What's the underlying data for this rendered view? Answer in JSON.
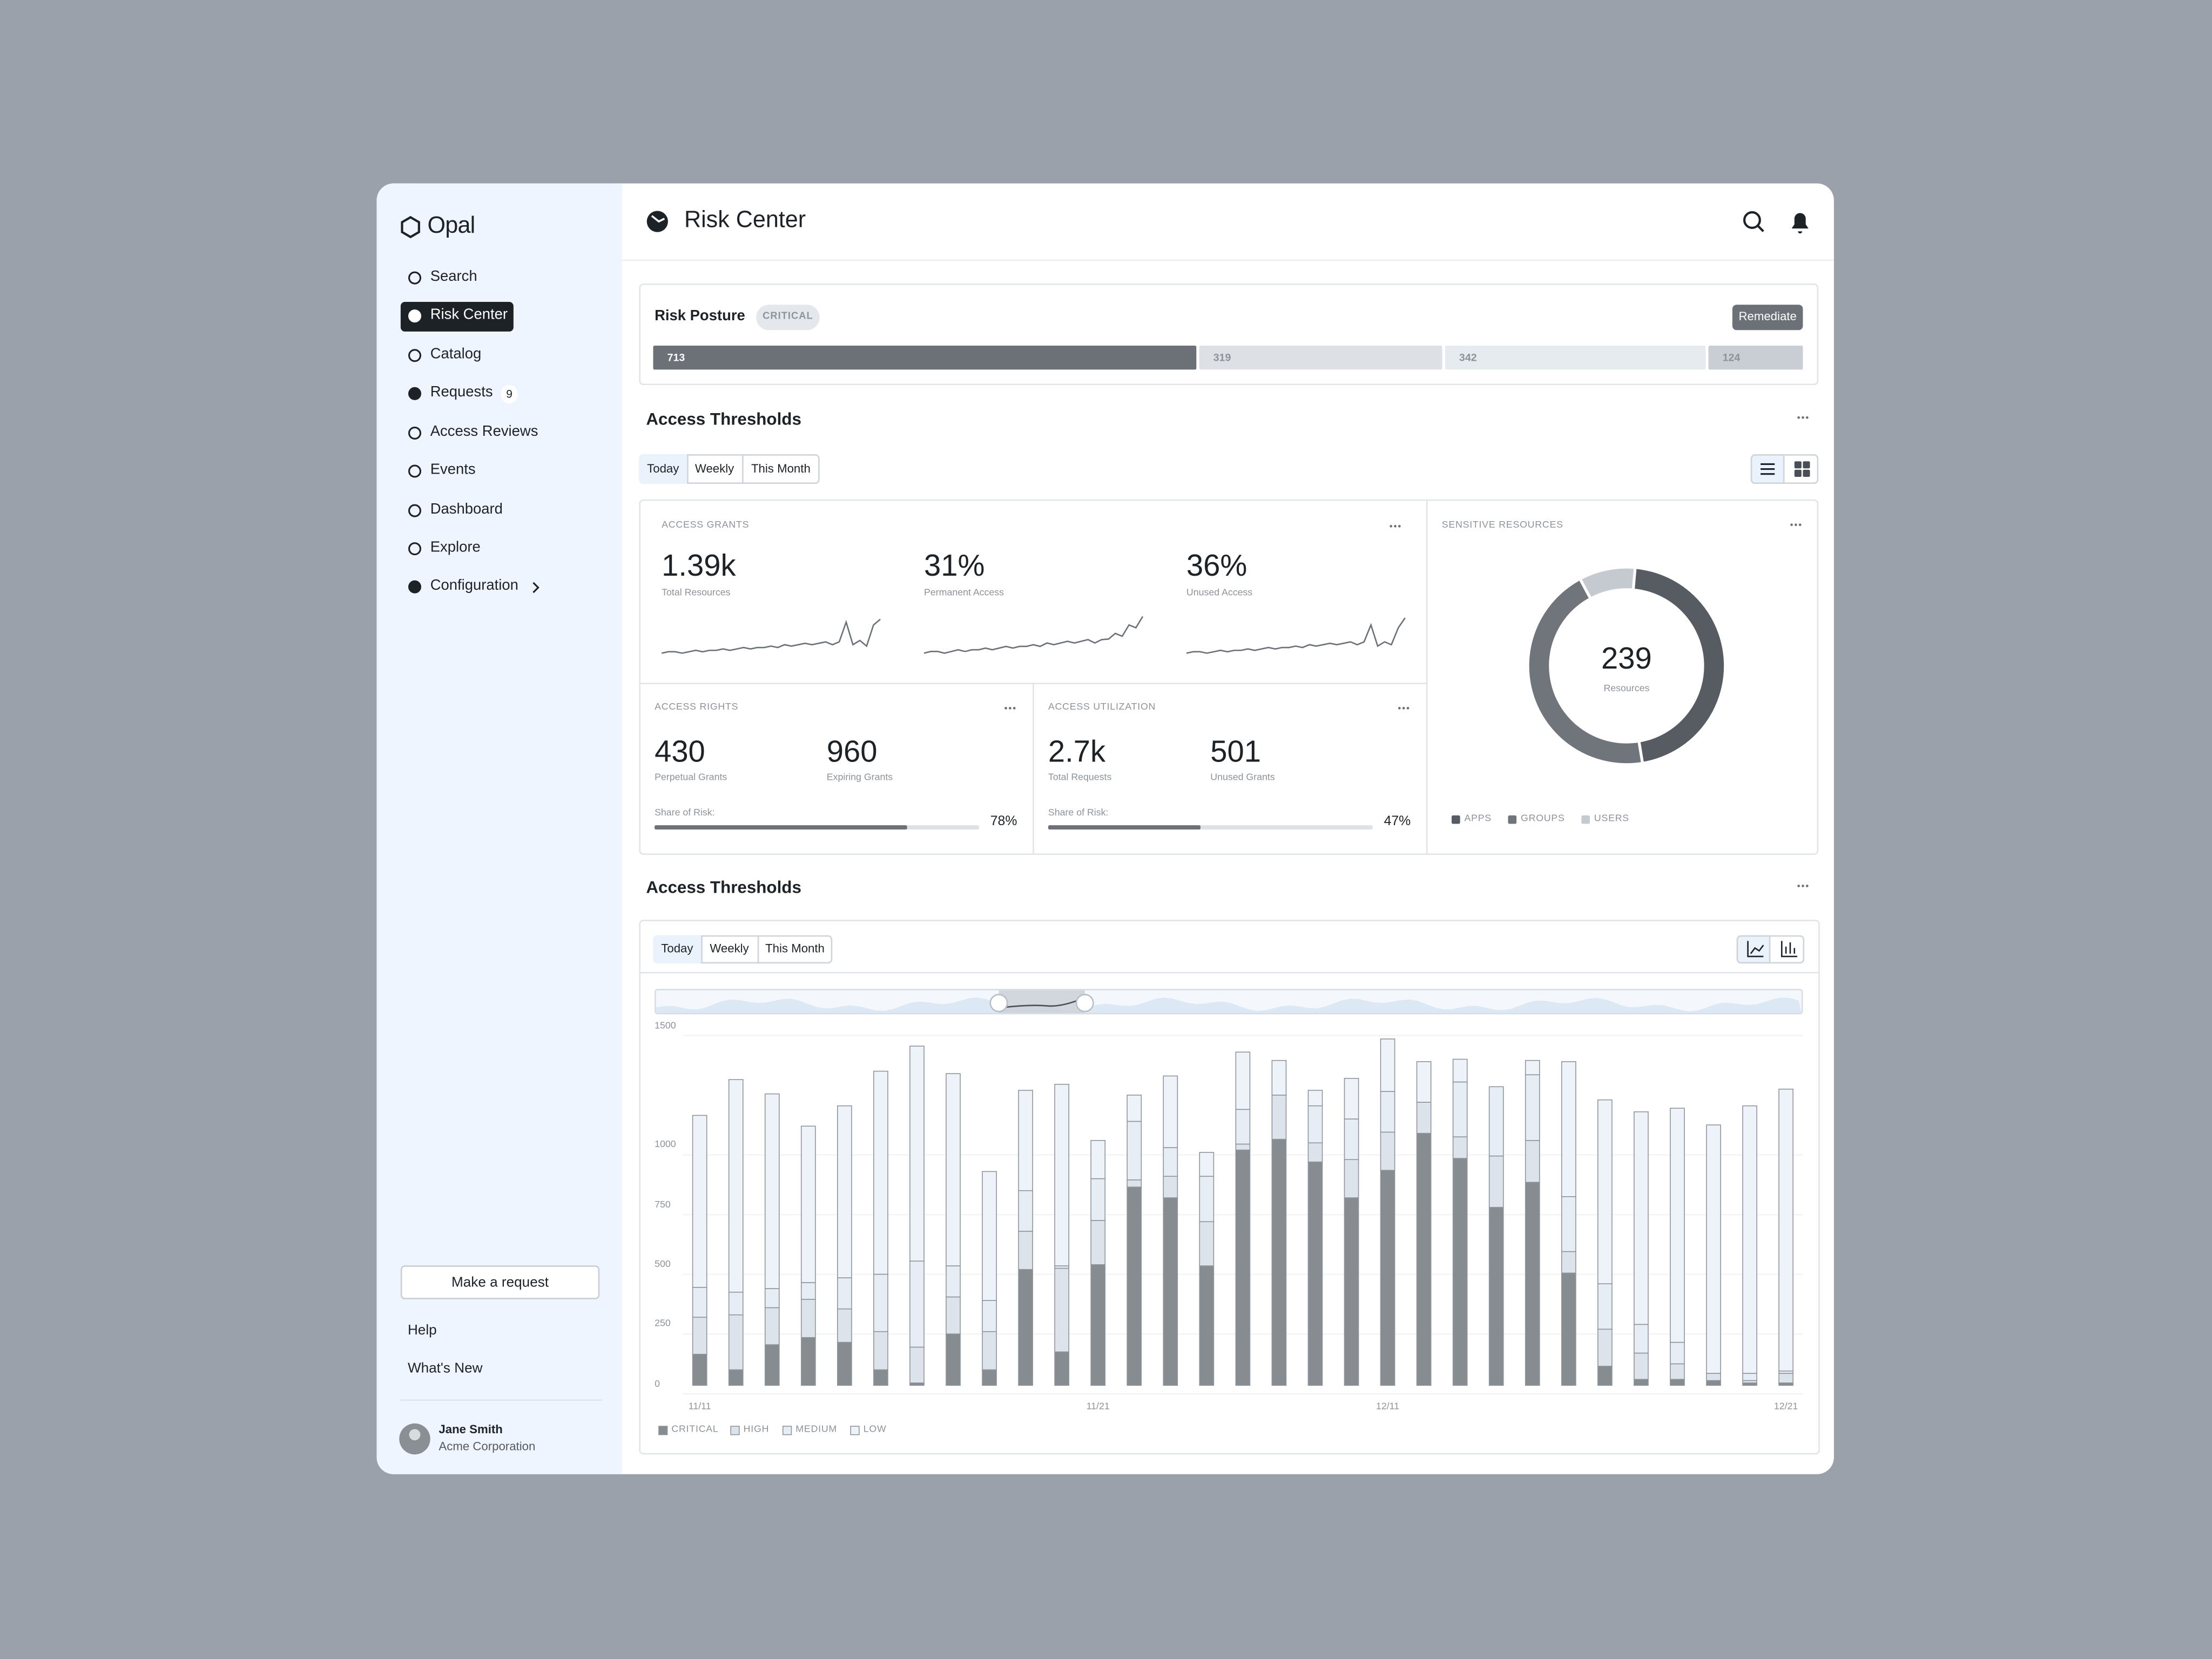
{
  "sidebar": {
    "brand": "Opal",
    "nav": [
      "Search",
      "Risk Center",
      "Catalog",
      "Requests",
      "Access Reviews",
      "Events",
      "Dashboard",
      "Explore",
      "Configuration"
    ],
    "requests_badge": 9,
    "make_request": "Make a request",
    "links": [
      "Help",
      "What's New"
    ],
    "user": {
      "name": "Jane Smith",
      "org": "Acme Corporation"
    }
  },
  "header": {
    "title": "Risk Center"
  },
  "risk_posture": {
    "title": "Risk Posture",
    "badge": "CRITICAL",
    "action": "Remediate"
  },
  "access_thresholds": {
    "title": "Access Thresholds",
    "tabs": [
      "Today",
      "Weekly",
      "This Month"
    ],
    "access_grants": {
      "title": "ACCESS GRANTS",
      "metrics": [
        {
          "value": "1.39k",
          "label": "Total Resources"
        },
        {
          "value": "31%",
          "label": "Permanent Access"
        },
        {
          "value": "36%",
          "label": "Unused Access"
        }
      ]
    },
    "access_rights": {
      "title": "ACCESS RIGHTS",
      "metrics": [
        {
          "value": 430,
          "label": "Perpetual Grants"
        },
        {
          "value": 960,
          "label": "Expiring Grants"
        }
      ],
      "share": {
        "label": "Share of Risk:",
        "value": 78,
        "value_label": "78%"
      }
    },
    "access_utilization": {
      "title": "ACCESS UTILIZATION",
      "metrics": [
        {
          "value": "2.7k",
          "label": "Total Requests"
        },
        {
          "value": 501,
          "label": "Unused Grants"
        }
      ],
      "share": {
        "label": "Share of Risk:",
        "value": 47,
        "value_label": "47%"
      }
    }
  },
  "activity": {
    "title": "Access Thresholds",
    "tabs": [
      "Today",
      "Weekly",
      "This Month"
    ]
  },
  "chart_data": [
    {
      "type": "bar",
      "orientation": "horizontal",
      "stacked": true,
      "values": [
        713,
        319,
        342,
        124
      ],
      "colors": [
        "#6b7177",
        "#dde1e5",
        "#e6ebf0",
        "#c8ced4"
      ]
    },
    {
      "type": "pie",
      "donut": true,
      "title": "SENSITIVE RESOURCES",
      "categories": [
        "APPS",
        "GROUPS",
        "USERS"
      ],
      "values": [
        110,
        107,
        22
      ],
      "colors": [
        "#575c62",
        "#6f757b",
        "#c5cad0"
      ],
      "total": 239,
      "total_label": "Resources"
    },
    {
      "type": "bar",
      "stacked": true,
      "legend": "bottom-left",
      "grid": true,
      "categories": [
        "11/11",
        null,
        null,
        null,
        null,
        null,
        null,
        null,
        null,
        null,
        null,
        "11/21",
        null,
        null,
        null,
        null,
        null,
        null,
        null,
        "12/11",
        null,
        null,
        null,
        null,
        null,
        null,
        null,
        null,
        null,
        null,
        "12/21"
      ],
      "ylim": [
        0,
        1500
      ],
      "yticks": [
        0,
        250,
        500,
        750,
        1000,
        1500
      ],
      "series": [
        {
          "name": "CRITICAL",
          "color": "#878c91",
          "values": [
            130,
            65,
            170,
            200,
            180,
            65,
            10,
            215,
            65,
            485,
            140,
            505,
            830,
            785,
            500,
            985,
            1030,
            935,
            785,
            900,
            1055,
            950,
            745,
            850,
            470,
            80,
            25,
            25,
            20,
            10,
            10
          ]
        },
        {
          "name": "HIGH",
          "color": "#dde3ea",
          "values": [
            155,
            230,
            155,
            160,
            140,
            160,
            150,
            155,
            160,
            160,
            350,
            185,
            30,
            90,
            185,
            25,
            185,
            80,
            160,
            160,
            130,
            90,
            215,
            175,
            90,
            155,
            110,
            65,
            30,
            10,
            40
          ]
        },
        {
          "name": "MEDIUM",
          "color": "#e7edf4",
          "values": [
            125,
            95,
            80,
            70,
            130,
            240,
            360,
            130,
            130,
            170,
            10,
            175,
            245,
            120,
            190,
            145,
            0,
            155,
            170,
            170,
            0,
            230,
            290,
            275,
            230,
            190,
            120,
            90,
            0,
            30,
            10
          ]
        },
        {
          "name": "LOW",
          "color": "#eef3fa",
          "values": [
            720,
            890,
            815,
            655,
            720,
            850,
            900,
            805,
            540,
            420,
            760,
            160,
            110,
            300,
            100,
            240,
            145,
            65,
            170,
            220,
            170,
            95,
            0,
            60,
            565,
            770,
            890,
            980,
            1040,
            1120,
            1180
          ]
        }
      ]
    }
  ]
}
